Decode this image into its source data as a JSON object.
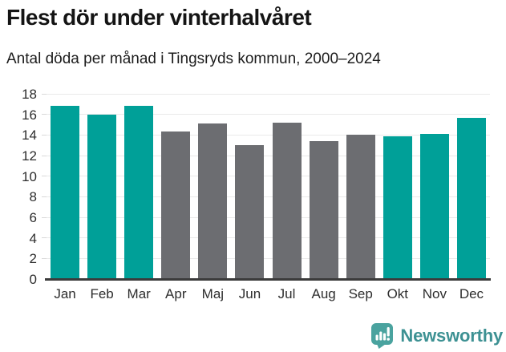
{
  "header": {
    "title": "Flest dör under vinterhalvåret",
    "subtitle": "Antal döda per månad i Tingsryds kommun, 2000–2024"
  },
  "footer": {
    "brand": "Newsworthy",
    "brand_text_color": "#3d9193",
    "brand_icon_color": "#4aa39f"
  },
  "chart_data": {
    "type": "bar",
    "title": "Flest dör under vinterhalvåret",
    "subtitle": "Antal döda per månad i Tingsryds kommun, 2000–2024",
    "categories": [
      "Jan",
      "Feb",
      "Mar",
      "Apr",
      "Maj",
      "Jun",
      "Jul",
      "Aug",
      "Sep",
      "Okt",
      "Nov",
      "Dec"
    ],
    "values": [
      16.8,
      16.0,
      16.8,
      14.3,
      15.1,
      13.0,
      15.2,
      13.4,
      14.0,
      13.9,
      14.1,
      15.7
    ],
    "xlabel": "",
    "ylabel": "",
    "ylim": [
      0,
      18
    ],
    "yticks": [
      0,
      2,
      4,
      6,
      8,
      10,
      12,
      14,
      16,
      18
    ],
    "grid": "horizontal",
    "legend": "none",
    "colors": {
      "winter_bar": "#00a098",
      "summer_bar": "#6c6d71"
    },
    "winter_months": [
      "Jan",
      "Feb",
      "Mar",
      "Okt",
      "Nov",
      "Dec"
    ]
  }
}
